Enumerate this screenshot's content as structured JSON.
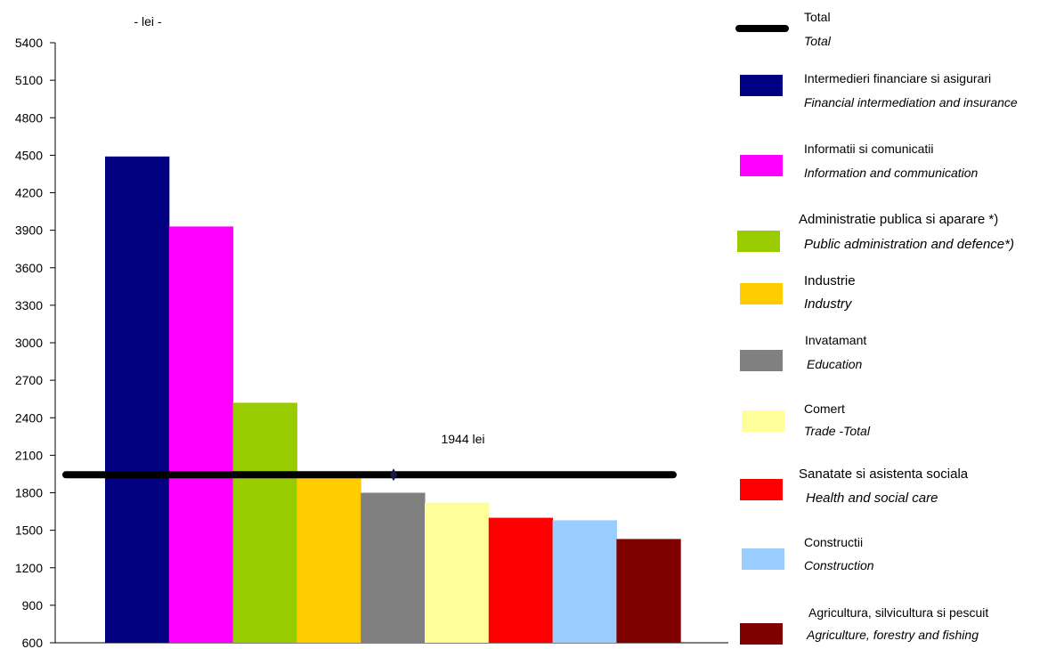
{
  "chart_data": {
    "type": "bar",
    "unit_label": "- lei -",
    "ylim": [
      600,
      5400
    ],
    "yticks": [
      600,
      900,
      1200,
      1500,
      1800,
      2100,
      2400,
      2700,
      3000,
      3300,
      3600,
      3900,
      4200,
      4500,
      4800,
      5100,
      5400
    ],
    "categories": [
      "Intermedieri financiare si asigurari",
      "Informatii si comunicatii",
      "Administratie publica si aparare *)",
      "Industrie",
      "Invatamant",
      "Comert",
      "Sanatate si asistenta sociala",
      "Constructii",
      "Agricultura, silvicultura si pescuit"
    ],
    "values": [
      4490,
      3930,
      2520,
      1940,
      1800,
      1720,
      1600,
      1580,
      1430
    ],
    "colors": [
      "#000080",
      "#ff00ff",
      "#99cc00",
      "#ffcc00",
      "#808080",
      "#ffff99",
      "#ff0000",
      "#99ccff",
      "#800000"
    ],
    "total": {
      "value": 1944,
      "label": "1944 lei",
      "color": "#000000"
    },
    "legend": [
      {
        "ro": "Total",
        "en": "Total",
        "type": "line",
        "color": "#000000"
      },
      {
        "ro": "Intermedieri financiare si asigurari",
        "en": "Financial intermediation and insurance",
        "type": "box",
        "color": "#000080"
      },
      {
        "ro": "Informatii si comunicatii",
        "en": "Information and communication",
        "type": "box",
        "color": "#ff00ff"
      },
      {
        "ro": "Administratie publica si aparare *)",
        "en": "Public administration and defence*)",
        "type": "box",
        "color": "#99cc00"
      },
      {
        "ro": "Industrie",
        "en": "Industry",
        "type": "box",
        "color": "#ffcc00"
      },
      {
        "ro": "Invatamant",
        "en": "Education",
        "type": "box",
        "color": "#808080"
      },
      {
        "ro": "Comert",
        "en": "Trade -Total",
        "type": "box",
        "color": "#ffff99"
      },
      {
        "ro": "Sanatate si asistenta sociala",
        "en": "Health and social care",
        "type": "box",
        "color": "#ff0000"
      },
      {
        "ro": "Constructii",
        "en": "Construction",
        "type": "box",
        "color": "#99ccff"
      },
      {
        "ro": "Agricultura, silvicultura si pescuit",
        "en": "Agriculture, forestry and fishing",
        "type": "box",
        "color": "#800000"
      }
    ],
    "legend_position": "right",
    "grid": false
  }
}
